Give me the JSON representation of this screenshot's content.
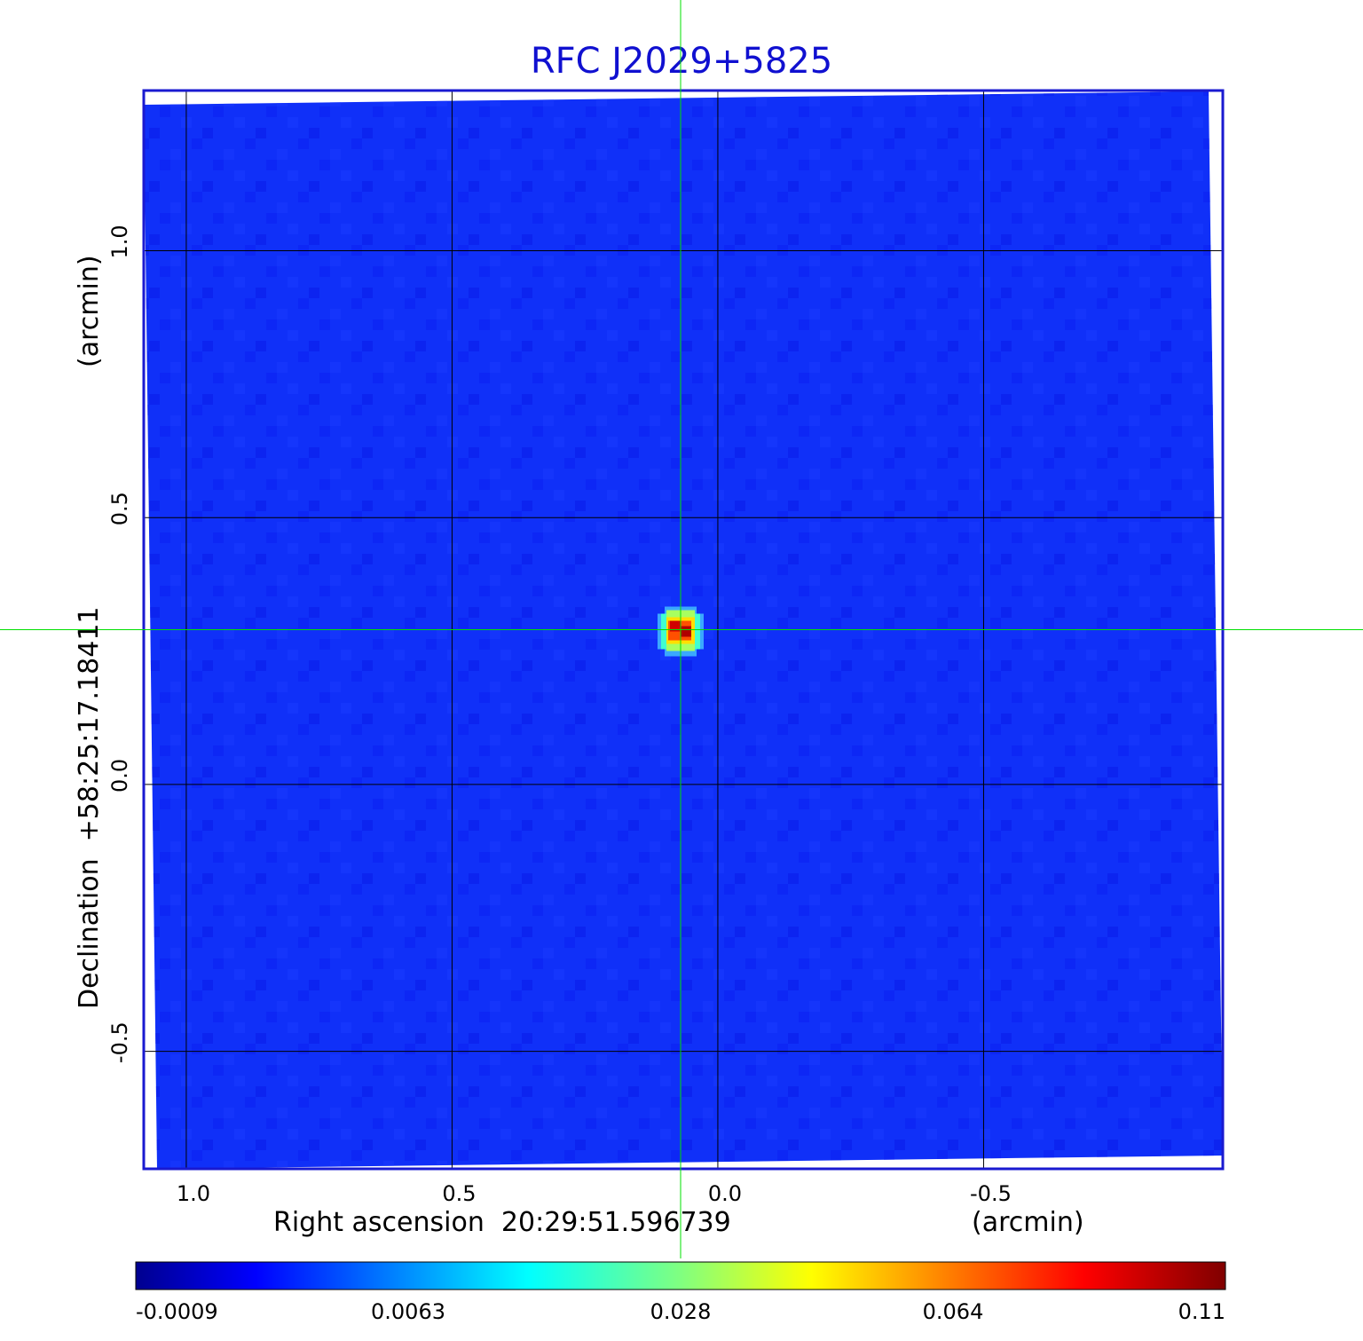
{
  "chart_data": {
    "type": "heatmap",
    "title": "RFC J2029+5825",
    "xlabel": "Right ascension  20:29:51.596739",
    "xlabel_unit": "(arcmin)",
    "ylabel": "Declination  +58:25:17.18411",
    "ylabel_unit": "(arcmin)",
    "x_ticks": [
      1.0,
      0.5,
      0.0,
      -0.5
    ],
    "x_tick_labels": [
      "1.0",
      "0.5",
      "0.0",
      "-0.5"
    ],
    "y_ticks": [
      1.0,
      0.5,
      0.0,
      -0.5
    ],
    "y_tick_labels": [
      "1.0",
      "0.5",
      "0.0",
      "-0.5"
    ],
    "xlim": [
      1.08,
      -0.95
    ],
    "ylim": [
      -0.72,
      1.3
    ],
    "grid": true,
    "crosshair": {
      "x": 0.07,
      "y": 0.29,
      "color": "#00e000"
    },
    "source": {
      "x": 0.07,
      "y": 0.29,
      "peak": 0.11
    },
    "background_level": 0.001,
    "colorbar": {
      "colormap": "jet",
      "tick_labels": [
        "-0.0009",
        "0.0063",
        "0.028",
        "0.064",
        "0.11"
      ],
      "vmin": -0.0009,
      "vmax": 0.11
    },
    "colors": {
      "title": "#1010d0",
      "frame": "#1a1ad0",
      "grid": "#000000"
    }
  }
}
